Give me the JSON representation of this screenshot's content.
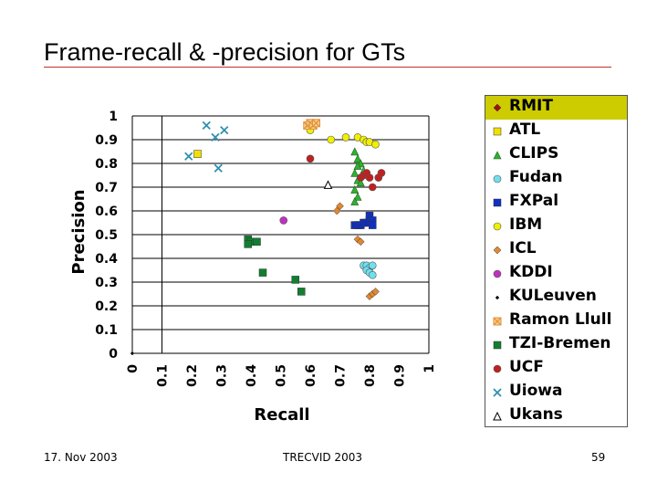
{
  "slide": {
    "title": "Frame-recall & -precision for GTs",
    "footer_left": "17. Nov 2003",
    "footer_center": "TRECVID 2003",
    "page_number": "59"
  },
  "chart_data": {
    "type": "scatter",
    "title": "",
    "xlabel": "Recall",
    "ylabel": "Precision",
    "xlim": [
      0,
      1
    ],
    "ylim": [
      0,
      1
    ],
    "x_ticks": [
      "0",
      "0.1",
      "0.2",
      "0.3",
      "0.4",
      "0.5",
      "0.6",
      "0.7",
      "0.8",
      "0.9",
      "1"
    ],
    "y_ticks": [
      "0",
      "0.1",
      "0.2",
      "0.3",
      "0.4",
      "0.5",
      "0.6",
      "0.7",
      "0.8",
      "0.9",
      "1"
    ],
    "grid": "horizontal",
    "legend_position": "right",
    "series": [
      {
        "name": "RMIT",
        "marker": "diamond",
        "color": "#a01010",
        "points": []
      },
      {
        "name": "ATL",
        "marker": "square",
        "color": "#f0e000",
        "points": [
          [
            0.22,
            0.84
          ]
        ]
      },
      {
        "name": "CLIPS",
        "marker": "triangle",
        "color": "#30b030",
        "points": [
          [
            0.75,
            0.85
          ],
          [
            0.76,
            0.82
          ],
          [
            0.77,
            0.8
          ],
          [
            0.76,
            0.79
          ],
          [
            0.78,
            0.77
          ],
          [
            0.75,
            0.76
          ],
          [
            0.76,
            0.73
          ],
          [
            0.77,
            0.72
          ],
          [
            0.75,
            0.69
          ],
          [
            0.76,
            0.66
          ],
          [
            0.75,
            0.64
          ]
        ]
      },
      {
        "name": "Fudan",
        "marker": "circle",
        "color": "#70e0f0",
        "points": [
          [
            0.78,
            0.37
          ],
          [
            0.79,
            0.37
          ],
          [
            0.8,
            0.36
          ],
          [
            0.81,
            0.37
          ],
          [
            0.79,
            0.35
          ],
          [
            0.8,
            0.34
          ],
          [
            0.81,
            0.33
          ]
        ]
      },
      {
        "name": "FXPal",
        "marker": "square",
        "color": "#1030c0",
        "points": [
          [
            0.75,
            0.54
          ],
          [
            0.76,
            0.54
          ],
          [
            0.77,
            0.54
          ],
          [
            0.78,
            0.55
          ],
          [
            0.79,
            0.55
          ],
          [
            0.8,
            0.56
          ],
          [
            0.8,
            0.58
          ],
          [
            0.81,
            0.56
          ],
          [
            0.81,
            0.54
          ]
        ]
      },
      {
        "name": "IBM",
        "marker": "circle",
        "color": "#f0f000",
        "points": [
          [
            0.6,
            0.94
          ],
          [
            0.67,
            0.9
          ],
          [
            0.72,
            0.91
          ],
          [
            0.76,
            0.91
          ],
          [
            0.78,
            0.9
          ],
          [
            0.79,
            0.89
          ],
          [
            0.8,
            0.89
          ],
          [
            0.82,
            0.88
          ]
        ]
      },
      {
        "name": "ICL",
        "marker": "diamond",
        "color": "#e08830",
        "points": [
          [
            0.7,
            0.62
          ],
          [
            0.69,
            0.6
          ],
          [
            0.76,
            0.48
          ],
          [
            0.77,
            0.47
          ],
          [
            0.8,
            0.24
          ],
          [
            0.81,
            0.25
          ],
          [
            0.82,
            0.26
          ]
        ]
      },
      {
        "name": "KDDI",
        "marker": "circle",
        "color": "#c030c0",
        "points": [
          [
            0.51,
            0.56
          ]
        ]
      },
      {
        "name": "KULeuven",
        "marker": "diamond",
        "color": "#000000",
        "points": [
          [
            0.0,
            0.0
          ]
        ]
      },
      {
        "name": "Ramon Llull",
        "marker": "xbox",
        "color": "#e09040",
        "points": [
          [
            0.59,
            0.96
          ],
          [
            0.6,
            0.97
          ],
          [
            0.61,
            0.96
          ],
          [
            0.62,
            0.97
          ]
        ]
      },
      {
        "name": "TZI-Bremen",
        "marker": "square",
        "color": "#108030",
        "points": [
          [
            0.39,
            0.48
          ],
          [
            0.4,
            0.47
          ],
          [
            0.39,
            0.46
          ],
          [
            0.42,
            0.47
          ],
          [
            0.44,
            0.34
          ],
          [
            0.55,
            0.31
          ],
          [
            0.57,
            0.26
          ]
        ]
      },
      {
        "name": "UCF",
        "marker": "circle",
        "color": "#c02020",
        "points": [
          [
            0.6,
            0.82
          ],
          [
            0.77,
            0.74
          ],
          [
            0.78,
            0.75
          ],
          [
            0.79,
            0.76
          ],
          [
            0.8,
            0.74
          ],
          [
            0.81,
            0.7
          ],
          [
            0.83,
            0.74
          ],
          [
            0.84,
            0.76
          ]
        ]
      },
      {
        "name": "Uiowa",
        "marker": "x",
        "color": "#3090b0",
        "points": [
          [
            0.25,
            0.96
          ],
          [
            0.28,
            0.91
          ],
          [
            0.31,
            0.94
          ],
          [
            0.19,
            0.83
          ],
          [
            0.29,
            0.78
          ]
        ]
      },
      {
        "name": "Ukans",
        "marker": "triangle-open",
        "color": "#000000",
        "points": [
          [
            0.66,
            0.71
          ]
        ]
      }
    ]
  }
}
